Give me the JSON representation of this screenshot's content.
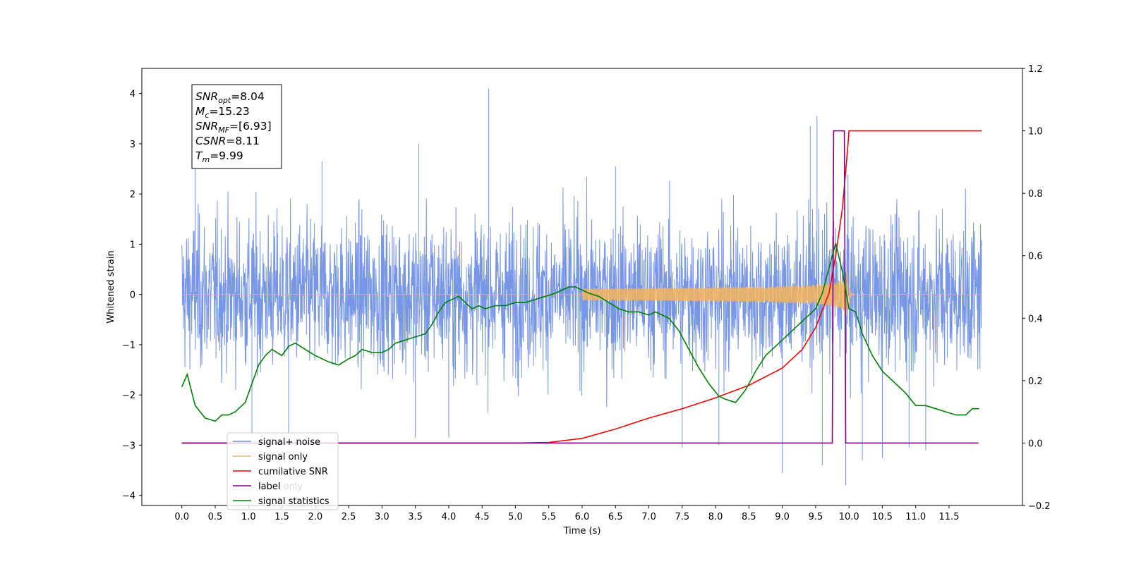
{
  "chart_data": {
    "type": "line",
    "title": "",
    "xlabel": "Time (s)",
    "ylabel": "Whitened strain",
    "xlim": [
      -0.6,
      12.6
    ],
    "ylim": [
      -4.2,
      4.5
    ],
    "y2lim": [
      -0.2,
      1.2
    ],
    "x_ticks": [
      "0.0",
      "0.5",
      "1.0",
      "1.5",
      "2.0",
      "2.5",
      "3.0",
      "3.5",
      "4.0",
      "4.5",
      "5.0",
      "5.5",
      "6.0",
      "6.5",
      "7.0",
      "7.5",
      "8.0",
      "8.5",
      "9.0",
      "9.5",
      "10.0",
      "10.5",
      "11.0",
      "11.5"
    ],
    "y_ticks": [
      "4",
      "3",
      "2",
      "1",
      "0",
      "−1",
      "−2",
      "−3",
      "−4"
    ],
    "y2_ticks": [
      "1.2",
      "1.0",
      "0.8",
      "0.6",
      "0.4",
      "0.2",
      "0.0",
      "−0.2"
    ],
    "grid": false,
    "legend_position": "lower-left",
    "colors": {
      "noise": "#7090e4",
      "signal": "#f4b45a",
      "csnr": "#ff0000",
      "label": "#800080",
      "stats": "#008000"
    },
    "series": [
      {
        "name": "signal+ noise",
        "axis": "left",
        "description_values": "whitened noise, roughly uniform in [-2.5, 2.5] with spikes",
        "notable_points": [
          {
            "x": 4.6,
            "y": 4.1
          },
          {
            "x": 9.52,
            "y": 3.55
          },
          {
            "x": 9.95,
            "y": -3.8
          },
          {
            "x": 9.0,
            "y": -3.55
          },
          {
            "x": 9.6,
            "y": -3.4
          }
        ]
      },
      {
        "name": "signal only",
        "axis": "left",
        "chirp_start": 6.0,
        "merger": 9.99,
        "peak_amplitude": 0.6
      },
      {
        "name": "cumilative SNR",
        "axis": "right",
        "x": [
          0.0,
          5.0,
          5.5,
          6.0,
          6.5,
          7.0,
          7.5,
          8.0,
          8.5,
          9.0,
          9.3,
          9.5,
          9.7,
          9.8,
          9.9,
          9.95,
          9.99,
          10.0,
          11.99
        ],
        "y": [
          0.0,
          0.0,
          0.002,
          0.015,
          0.045,
          0.08,
          0.11,
          0.145,
          0.185,
          0.24,
          0.3,
          0.37,
          0.48,
          0.6,
          0.75,
          0.87,
          0.97,
          1.0,
          1.0
        ]
      },
      {
        "name": "label",
        "axis": "right",
        "x": [
          0.0,
          9.75,
          9.77,
          9.93,
          9.95,
          11.94
        ],
        "y": [
          0.0,
          0.0,
          1.0,
          1.0,
          0.0,
          0.0
        ]
      },
      {
        "name": "label only",
        "axis": "right",
        "x": [],
        "y": []
      },
      {
        "name": "signal statistics",
        "axis": "right",
        "x": [
          0.0,
          0.08,
          0.2,
          0.35,
          0.5,
          0.6,
          0.7,
          0.8,
          0.95,
          1.05,
          1.15,
          1.25,
          1.35,
          1.5,
          1.6,
          1.7,
          1.85,
          2.0,
          2.2,
          2.35,
          2.5,
          2.6,
          2.7,
          2.85,
          3.0,
          3.1,
          3.2,
          3.35,
          3.5,
          3.65,
          3.75,
          3.85,
          3.95,
          4.05,
          4.15,
          4.25,
          4.35,
          4.45,
          4.55,
          4.7,
          4.85,
          5.0,
          5.15,
          5.3,
          5.45,
          5.6,
          5.7,
          5.8,
          5.9,
          6.0,
          6.1,
          6.25,
          6.4,
          6.55,
          6.7,
          6.85,
          7.0,
          7.1,
          7.2,
          7.3,
          7.45,
          7.6,
          7.75,
          7.9,
          8.05,
          8.15,
          8.3,
          8.45,
          8.6,
          8.75,
          8.9,
          9.0,
          9.1,
          9.2,
          9.35,
          9.5,
          9.6,
          9.7,
          9.8,
          9.9,
          10.0,
          10.1,
          10.2,
          10.35,
          10.5,
          10.7,
          10.85,
          11.0,
          11.15,
          11.3,
          11.45,
          11.6,
          11.75,
          11.85,
          11.95
        ],
        "y": [
          0.18,
          0.22,
          0.12,
          0.08,
          0.07,
          0.09,
          0.09,
          0.1,
          0.13,
          0.19,
          0.25,
          0.28,
          0.3,
          0.28,
          0.31,
          0.32,
          0.3,
          0.28,
          0.26,
          0.25,
          0.27,
          0.28,
          0.3,
          0.29,
          0.29,
          0.3,
          0.32,
          0.33,
          0.34,
          0.35,
          0.38,
          0.42,
          0.45,
          0.46,
          0.47,
          0.45,
          0.43,
          0.44,
          0.43,
          0.44,
          0.44,
          0.45,
          0.45,
          0.46,
          0.47,
          0.48,
          0.49,
          0.5,
          0.5,
          0.49,
          0.48,
          0.47,
          0.45,
          0.43,
          0.42,
          0.42,
          0.41,
          0.42,
          0.41,
          0.4,
          0.36,
          0.3,
          0.24,
          0.19,
          0.15,
          0.14,
          0.13,
          0.17,
          0.23,
          0.28,
          0.31,
          0.33,
          0.35,
          0.37,
          0.4,
          0.43,
          0.48,
          0.56,
          0.64,
          0.55,
          0.43,
          0.42,
          0.35,
          0.28,
          0.23,
          0.19,
          0.16,
          0.12,
          0.12,
          0.11,
          0.1,
          0.09,
          0.09,
          0.11,
          0.11
        ]
      }
    ],
    "annotations": [
      {
        "text": "=8.04",
        "math": "SNR",
        "sub": "opt"
      },
      {
        "text": "=15.23",
        "math": "M",
        "sub": "c"
      },
      {
        "text": "=[6.93]",
        "math": "SNR",
        "sub": "MF"
      },
      {
        "text": "=8.11",
        "math": "CSNR",
        "sub": ""
      },
      {
        "text": "=9.99",
        "math": "T",
        "sub": "m"
      }
    ]
  }
}
